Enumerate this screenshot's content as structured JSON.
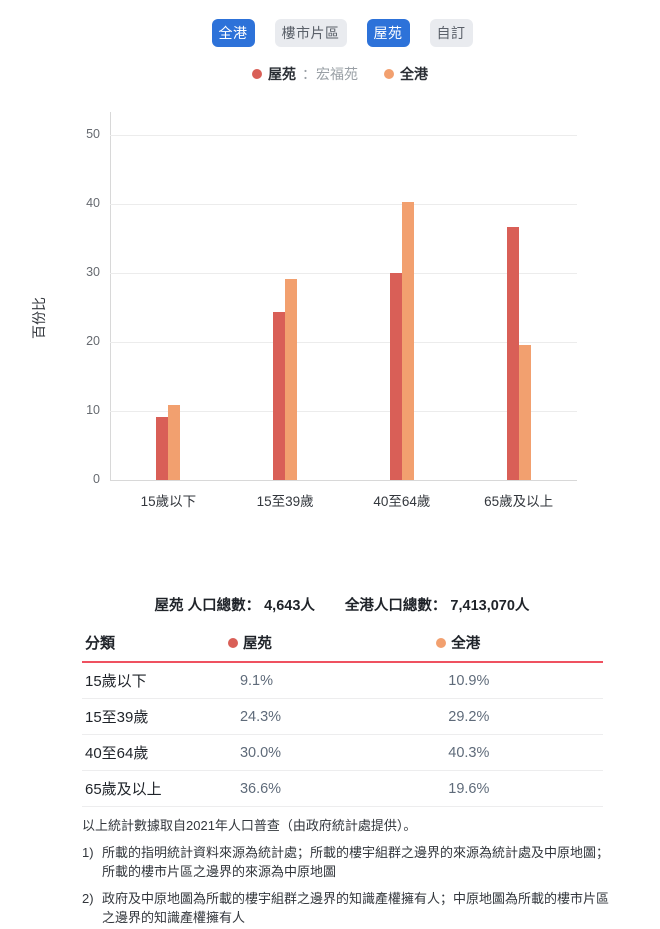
{
  "tabs": [
    {
      "label": "全港",
      "active": true
    },
    {
      "label": "樓市片區",
      "active": false
    },
    {
      "label": "屋苑",
      "active": true
    },
    {
      "label": "自訂",
      "active": false
    }
  ],
  "legend": {
    "estate_label": "屋苑",
    "estate_name": "：宏福苑",
    "overall_label": "全港"
  },
  "chart_data": {
    "type": "bar",
    "title": "",
    "xlabel": "",
    "ylabel": "百份比",
    "ylim": [
      0,
      50
    ],
    "yticks": [
      0,
      10,
      20,
      30,
      40,
      50
    ],
    "grid": true,
    "categories": [
      "15歲以下",
      "15至39歲",
      "40至64歲",
      "65歲及以上"
    ],
    "series": [
      {
        "name": "屋苑",
        "color": "#d95f57",
        "values": [
          9.1,
          24.3,
          30.0,
          36.6
        ]
      },
      {
        "name": "全港",
        "color": "#f2a06f",
        "values": [
          10.9,
          29.2,
          40.3,
          19.6
        ]
      }
    ]
  },
  "summary": {
    "estate_total": "屋苑 人口總數： 4,643人",
    "overall_total": "全港人口總數： 7,413,070人"
  },
  "table": {
    "headers": {
      "category": "分類",
      "estate": "屋苑",
      "overall": "全港"
    },
    "rows": [
      {
        "category": "15歲以下",
        "estate": "9.1%",
        "overall": "10.9%"
      },
      {
        "category": "15至39歲",
        "estate": "24.3%",
        "overall": "29.2%"
      },
      {
        "category": "40至64歲",
        "estate": "30.0%",
        "overall": "40.3%"
      },
      {
        "category": "65歲及以上",
        "estate": "36.6%",
        "overall": "19.6%"
      }
    ]
  },
  "notes": {
    "intro": "以上統計數據取自2021年人口普查（由政府統計處提供）。",
    "items": [
      {
        "num": "1)",
        "text": "所載的指明統計資料來源為統計處；所載的樓宇組群之邊界的來源為統計處及中原地圖；所載的樓市片區之邊界的來源為中原地圖"
      },
      {
        "num": "2)",
        "text": "政府及中原地圖為所載的樓宇組群之邊界的知識產權擁有人；中原地圖為所載的樓市片區之邊界的知識產權擁有人"
      }
    ]
  },
  "colors": {
    "active_tab": "#2d72d9",
    "inactive_tab_bg": "#e9ebef",
    "estate_series": "#d95f57",
    "overall_series": "#f2a06f",
    "table_rule": "#ef5160"
  }
}
